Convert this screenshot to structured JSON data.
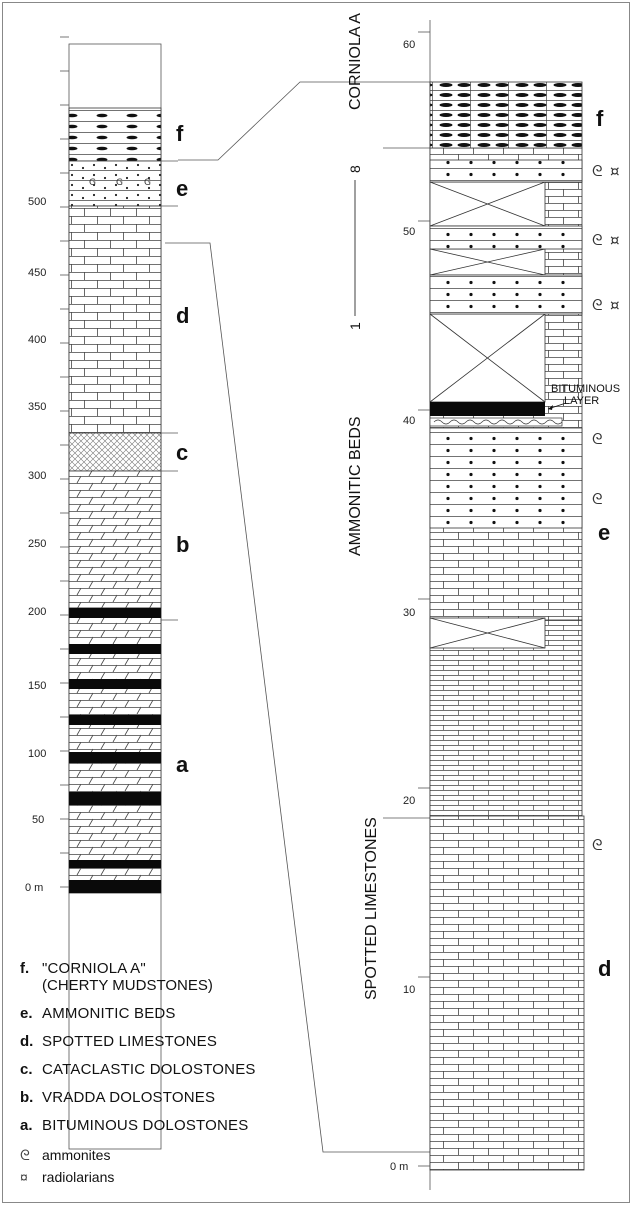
{
  "left_column": {
    "scale_ticks": [
      "0 m",
      "50",
      "100",
      "150",
      "200",
      "250",
      "300",
      "350",
      "400",
      "450",
      "500"
    ],
    "unit_letters": [
      "a",
      "b",
      "c",
      "d",
      "e",
      "f"
    ]
  },
  "right_column": {
    "scale_ticks": [
      "0 m",
      "10",
      "20",
      "30",
      "40",
      "50",
      "60"
    ],
    "unit_letters": [
      "d",
      "e",
      "f"
    ],
    "bed_markers": [
      "1",
      "8"
    ],
    "section_labels": {
      "spotted": "SPOTTED  LIMESTONES",
      "ammonitic": "AMMONITIC  BEDS",
      "corniola": "CORNIOLA  A"
    },
    "annotation": [
      "BITUMINOUS",
      "LAYER"
    ]
  },
  "legend": {
    "items": [
      {
        "code": "f.",
        "text": "\"CORNIOLA  A\"",
        "sub": "(CHERTY MUDSTONES)"
      },
      {
        "code": "e.",
        "text": "AMMONITIC BEDS"
      },
      {
        "code": "d.",
        "text": "SPOTTED LIMESTONES"
      },
      {
        "code": "c.",
        "text": "CATACLASTIC DOLOSTONES"
      },
      {
        "code": "b.",
        "text": "VRADDA DOLOSTONES"
      },
      {
        "code": "a.",
        "text": "BITUMINOUS DOLOSTONES"
      }
    ],
    "symbols": [
      {
        "icon": "ammonite-icon",
        "text": "ammonites"
      },
      {
        "icon": "radiolarian-icon",
        "text": "radiolarians"
      }
    ]
  }
}
